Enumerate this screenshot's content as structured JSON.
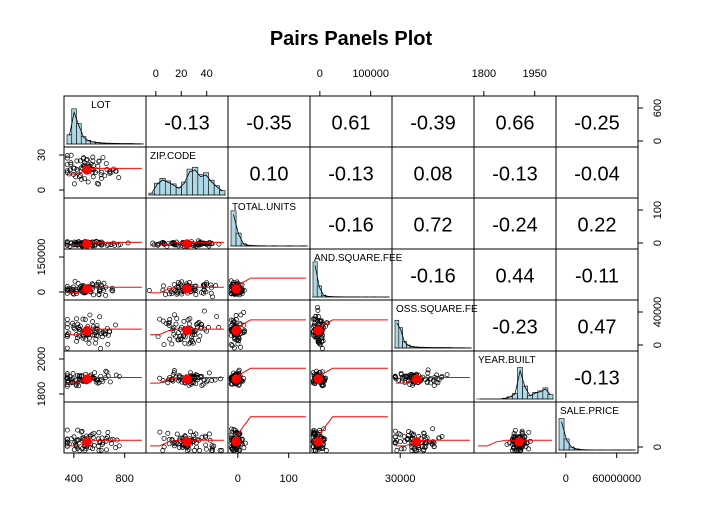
{
  "chart_data": {
    "type": "pairs_panels",
    "title": "Pairs Panels Plot",
    "variables": [
      "LOT",
      "ZIP.CODE",
      "TOTAL.UNITS",
      "LAND.SQUARE.FEET",
      "GROSS.SQUARE.FEET",
      "YEAR.BUILT",
      "SALE.PRICE"
    ],
    "variable_labels_shown": [
      "LOT",
      "ZIP.CODE",
      "TOTAL.UNITS",
      "AND.SQUARE.FEE",
      "OSS.SQUARE.FE",
      "YEAR.BUILT",
      "SALE.PRICE"
    ],
    "correlations": [
      {
        "row": 0,
        "col": 1,
        "value": "-0.13"
      },
      {
        "row": 0,
        "col": 2,
        "value": "-0.35"
      },
      {
        "row": 0,
        "col": 3,
        "value": "0.61"
      },
      {
        "row": 0,
        "col": 4,
        "value": "-0.39"
      },
      {
        "row": 0,
        "col": 5,
        "value": "0.66"
      },
      {
        "row": 0,
        "col": 6,
        "value": "-0.25"
      },
      {
        "row": 1,
        "col": 2,
        "value": "0.10"
      },
      {
        "row": 1,
        "col": 3,
        "value": "-0.13"
      },
      {
        "row": 1,
        "col": 4,
        "value": "0.08"
      },
      {
        "row": 1,
        "col": 5,
        "value": "-0.13"
      },
      {
        "row": 1,
        "col": 6,
        "value": "-0.04"
      },
      {
        "row": 2,
        "col": 3,
        "value": "-0.16"
      },
      {
        "row": 2,
        "col": 4,
        "value": "0.72"
      },
      {
        "row": 2,
        "col": 5,
        "value": "-0.24"
      },
      {
        "row": 2,
        "col": 6,
        "value": "0.22"
      },
      {
        "row": 3,
        "col": 4,
        "value": "-0.16"
      },
      {
        "row": 3,
        "col": 5,
        "value": "0.44"
      },
      {
        "row": 3,
        "col": 6,
        "value": "-0.11"
      },
      {
        "row": 4,
        "col": 5,
        "value": "-0.23"
      },
      {
        "row": 4,
        "col": 6,
        "value": "0.47"
      },
      {
        "row": 5,
        "col": 6,
        "value": "-0.13"
      }
    ],
    "top_axis_ticks": [
      {
        "col": 1,
        "labels": [
          "0",
          "20",
          "40"
        ]
      },
      {
        "col": 3,
        "labels": [
          "0",
          "100000"
        ]
      },
      {
        "col": 5,
        "labels": [
          "1800",
          "1950"
        ]
      }
    ],
    "bottom_axis_ticks": [
      {
        "col": 0,
        "labels": [
          "400",
          "800"
        ]
      },
      {
        "col": 2,
        "labels": [
          "0",
          "100"
        ]
      },
      {
        "col": 4,
        "labels": [
          "30000"
        ]
      },
      {
        "col": 6,
        "labels": [
          "0",
          "60000000"
        ]
      }
    ],
    "left_axis_ticks": [
      {
        "row": 1,
        "labels": [
          "0",
          "30"
        ]
      },
      {
        "row": 3,
        "labels": [
          "0",
          "150000"
        ]
      },
      {
        "row": 5,
        "labels": [
          "1800",
          "2000"
        ]
      }
    ],
    "right_axis_ticks": [
      {
        "row": 0,
        "labels": [
          "0",
          "600"
        ]
      },
      {
        "row": 2,
        "labels": [
          "0",
          "100"
        ]
      },
      {
        "row": 4,
        "labels": [
          "0",
          "40000"
        ]
      },
      {
        "row": 6,
        "labels": [
          "0"
        ]
      }
    ],
    "colors": {
      "points": "#000000",
      "smoother": "#ff0000",
      "centroid": "#ff0000",
      "histogram": "#add8e6",
      "frame": "#000000"
    }
  }
}
